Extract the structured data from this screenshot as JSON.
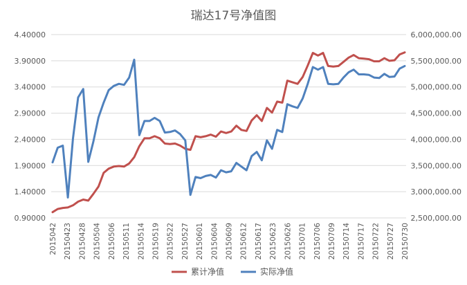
{
  "chart_data": {
    "type": "line",
    "title": "瑞达17号净值图",
    "xlabel": "",
    "ylabel": "",
    "y2label": "",
    "ylim": [
      0.9,
      4.4
    ],
    "y2lim": [
      2500000,
      6000000
    ],
    "yticks": [
      "0.90000",
      "1.40000",
      "1.90000",
      "2.40000",
      "2.90000",
      "3.40000",
      "3.90000",
      "4.40000"
    ],
    "y2ticks": [
      "2,500,000.00",
      "3,000,000.00",
      "3,500,000.00",
      "4,000,000.00",
      "4,500,000.00",
      "5,000,000.00",
      "5,500,000.00",
      "6,000,000.00"
    ],
    "xtick_labels": [
      "2015042",
      "20150423",
      "20150428",
      "20150504",
      "20150506",
      "20150511",
      "20150514",
      "20150519",
      "20150522",
      "20150527",
      "20150601",
      "20150604",
      "20150609",
      "20150612",
      "20150617",
      "20150623",
      "20150626",
      "20150701",
      "20150706",
      "20150709",
      "20150714",
      "20150717",
      "20150722",
      "20150727",
      "20150730"
    ],
    "x_count": 70,
    "grid": true,
    "legend_position": "bottom",
    "series": [
      {
        "name": "累计净值",
        "axis": "left",
        "color": "#C0504D",
        "values": [
          1.01,
          1.07,
          1.09,
          1.1,
          1.14,
          1.21,
          1.25,
          1.23,
          1.36,
          1.5,
          1.76,
          1.84,
          1.88,
          1.89,
          1.88,
          1.94,
          2.06,
          2.27,
          2.42,
          2.42,
          2.46,
          2.42,
          2.32,
          2.31,
          2.32,
          2.28,
          2.22,
          2.2,
          2.46,
          2.44,
          2.46,
          2.49,
          2.45,
          2.55,
          2.52,
          2.55,
          2.66,
          2.58,
          2.56,
          2.76,
          2.86,
          2.75,
          3.0,
          2.91,
          3.12,
          3.1,
          3.52,
          3.49,
          3.46,
          3.59,
          3.81,
          4.05,
          4.0,
          4.05,
          3.8,
          3.79,
          3.8,
          3.88,
          3.96,
          4.01,
          3.95,
          3.94,
          3.93,
          3.89,
          3.89,
          3.95,
          3.9,
          3.91,
          4.02,
          4.06
        ]
      },
      {
        "name": "实际净值",
        "axis": "right",
        "color": "#4F81BD",
        "values": [
          3560000,
          3840000,
          3880000,
          2890000,
          4020000,
          4800000,
          4960000,
          3570000,
          3960000,
          4420000,
          4700000,
          4940000,
          5020000,
          5060000,
          5040000,
          5180000,
          5520000,
          4080000,
          4350000,
          4350000,
          4410000,
          4350000,
          4130000,
          4140000,
          4170000,
          4100000,
          3980000,
          2940000,
          3280000,
          3260000,
          3300000,
          3320000,
          3270000,
          3410000,
          3370000,
          3390000,
          3550000,
          3480000,
          3410000,
          3680000,
          3760000,
          3600000,
          3980000,
          3820000,
          4180000,
          4140000,
          4670000,
          4630000,
          4600000,
          4780000,
          5060000,
          5380000,
          5330000,
          5380000,
          5060000,
          5050000,
          5060000,
          5180000,
          5280000,
          5330000,
          5240000,
          5240000,
          5230000,
          5180000,
          5170000,
          5250000,
          5190000,
          5200000,
          5350000,
          5400000
        ]
      }
    ]
  }
}
